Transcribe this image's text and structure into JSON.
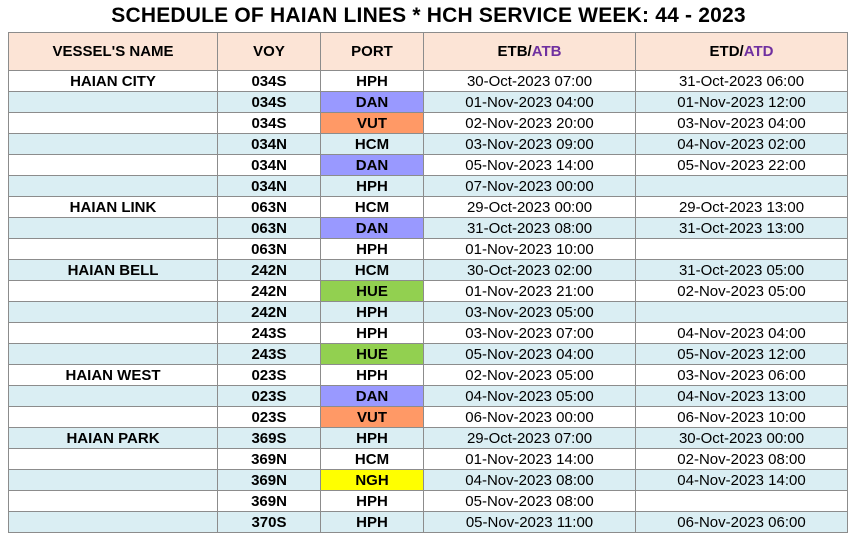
{
  "title": "SCHEDULE OF HAIAN LINES * HCH SERVICE WEEK: 44 - 2023",
  "headers": {
    "vessel": "VESSEL'S NAME",
    "voy": "VOY",
    "port": "PORT",
    "etb": "ETB",
    "etb_sep": "/",
    "atb": "ATB",
    "etd": "ETD",
    "etd_sep": "/",
    "atd": "ATD"
  },
  "colors": {
    "header_bg": "#fce4d6",
    "row_alt_bg": "#daeef3",
    "port_blue": "#9999ff",
    "port_orange": "#ff9966",
    "port_green": "#92d050",
    "port_yellow": "#ffff00",
    "accent_purple": "#7030a0"
  },
  "rows": [
    {
      "vessel": "HAIAN CITY",
      "voy": "034S",
      "port": "HPH",
      "port_color": "",
      "etb": "30-Oct-2023 07:00",
      "etd": "31-Oct-2023 06:00"
    },
    {
      "vessel": "",
      "voy": "034S",
      "port": "DAN",
      "port_color": "blue",
      "etb": "01-Nov-2023 04:00",
      "etd": "01-Nov-2023 12:00"
    },
    {
      "vessel": "",
      "voy": "034S",
      "port": "VUT",
      "port_color": "orange",
      "etb": "02-Nov-2023 20:00",
      "etd": "03-Nov-2023 04:00"
    },
    {
      "vessel": "",
      "voy": "034N",
      "port": "HCM",
      "port_color": "",
      "etb": "03-Nov-2023 09:00",
      "etd": "04-Nov-2023 02:00"
    },
    {
      "vessel": "",
      "voy": "034N",
      "port": "DAN",
      "port_color": "blue",
      "etb": "05-Nov-2023 14:00",
      "etd": "05-Nov-2023 22:00"
    },
    {
      "vessel": "",
      "voy": "034N",
      "port": "HPH",
      "port_color": "",
      "etb": "07-Nov-2023 00:00",
      "etd": ""
    },
    {
      "vessel": "HAIAN LINK",
      "voy": "063N",
      "port": "HCM",
      "port_color": "",
      "etb": "29-Oct-2023 00:00",
      "etd": "29-Oct-2023 13:00"
    },
    {
      "vessel": "",
      "voy": "063N",
      "port": "DAN",
      "port_color": "blue",
      "etb": "31-Oct-2023 08:00",
      "etd": "31-Oct-2023 13:00"
    },
    {
      "vessel": "",
      "voy": "063N",
      "port": "HPH",
      "port_color": "",
      "etb": "01-Nov-2023 10:00",
      "etd": ""
    },
    {
      "vessel": "HAIAN BELL",
      "voy": "242N",
      "port": "HCM",
      "port_color": "",
      "etb": "30-Oct-2023 02:00",
      "etd": "31-Oct-2023 05:00"
    },
    {
      "vessel": "",
      "voy": "242N",
      "port": "HUE",
      "port_color": "green",
      "etb": "01-Nov-2023 21:00",
      "etd": "02-Nov-2023 05:00"
    },
    {
      "vessel": "",
      "voy": "242N",
      "port": "HPH",
      "port_color": "",
      "etb": "03-Nov-2023 05:00",
      "etd": ""
    },
    {
      "vessel": "",
      "voy": "243S",
      "port": "HPH",
      "port_color": "",
      "etb": "03-Nov-2023 07:00",
      "etd": "04-Nov-2023 04:00"
    },
    {
      "vessel": "",
      "voy": "243S",
      "port": "HUE",
      "port_color": "green",
      "etb": "05-Nov-2023 04:00",
      "etd": "05-Nov-2023 12:00"
    },
    {
      "vessel": "HAIAN WEST",
      "voy": "023S",
      "port": "HPH",
      "port_color": "",
      "etb": "02-Nov-2023 05:00",
      "etd": "03-Nov-2023 06:00"
    },
    {
      "vessel": "",
      "voy": "023S",
      "port": "DAN",
      "port_color": "blue",
      "etb": "04-Nov-2023 05:00",
      "etd": "04-Nov-2023 13:00"
    },
    {
      "vessel": "",
      "voy": "023S",
      "port": "VUT",
      "port_color": "orange",
      "etb": "06-Nov-2023 00:00",
      "etd": "06-Nov-2023 10:00"
    },
    {
      "vessel": "HAIAN PARK",
      "voy": "369S",
      "port": "HPH",
      "port_color": "",
      "etb": "29-Oct-2023 07:00",
      "etd": "30-Oct-2023 00:00"
    },
    {
      "vessel": "",
      "voy": "369N",
      "port": "HCM",
      "port_color": "",
      "etb": "01-Nov-2023 14:00",
      "etd": "02-Nov-2023 08:00"
    },
    {
      "vessel": "",
      "voy": "369N",
      "port": "NGH",
      "port_color": "yellow",
      "etb": "04-Nov-2023 08:00",
      "etd": "04-Nov-2023 14:00"
    },
    {
      "vessel": "",
      "voy": "369N",
      "port": "HPH",
      "port_color": "",
      "etb": "05-Nov-2023 08:00",
      "etd": ""
    },
    {
      "vessel": "",
      "voy": "370S",
      "port": "HPH",
      "port_color": "",
      "etb": "05-Nov-2023 11:00",
      "etd": "06-Nov-2023 06:00"
    }
  ]
}
